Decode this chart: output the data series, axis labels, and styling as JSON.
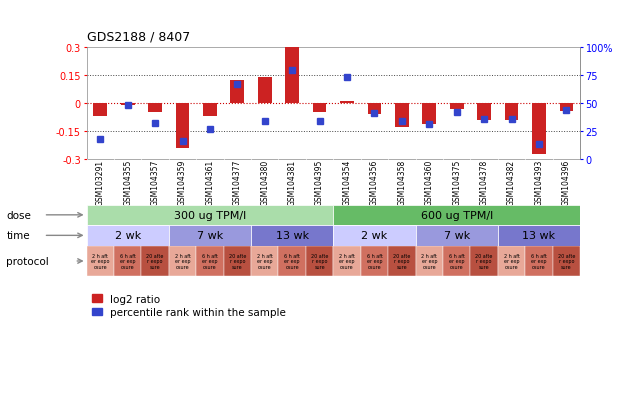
{
  "title": "GDS2188 / 8407",
  "samples": [
    "GSM103291",
    "GSM104355",
    "GSM104357",
    "GSM104359",
    "GSM104361",
    "GSM104377",
    "GSM104380",
    "GSM104381",
    "GSM104395",
    "GSM104354",
    "GSM104356",
    "GSM104358",
    "GSM104360",
    "GSM104375",
    "GSM104378",
    "GSM104382",
    "GSM104393",
    "GSM104396"
  ],
  "log2_ratio": [
    -0.07,
    -0.01,
    -0.05,
    -0.24,
    -0.07,
    0.12,
    0.14,
    0.3,
    -0.05,
    0.01,
    -0.06,
    -0.13,
    -0.11,
    -0.03,
    -0.09,
    -0.09,
    -0.27,
    -0.04
  ],
  "percentile": [
    18,
    48,
    32,
    16,
    27,
    67,
    34,
    79,
    34,
    73,
    41,
    34,
    31,
    42,
    36,
    36,
    14,
    44
  ],
  "dose_groups": [
    {
      "label": "300 ug TPM/l",
      "start": 0,
      "end": 9,
      "color": "#AADDAA"
    },
    {
      "label": "600 ug TPM/l",
      "start": 9,
      "end": 18,
      "color": "#66BB66"
    }
  ],
  "time_groups": [
    {
      "label": "2 wk",
      "start": 0,
      "end": 3,
      "color": "#CCCCFF"
    },
    {
      "label": "7 wk",
      "start": 3,
      "end": 6,
      "color": "#9999DD"
    },
    {
      "label": "13 wk",
      "start": 6,
      "end": 9,
      "color": "#7777CC"
    },
    {
      "label": "2 wk",
      "start": 9,
      "end": 12,
      "color": "#CCCCFF"
    },
    {
      "label": "7 wk",
      "start": 12,
      "end": 15,
      "color": "#9999DD"
    },
    {
      "label": "13 wk",
      "start": 15,
      "end": 18,
      "color": "#7777CC"
    }
  ],
  "protocol_labels": [
    "2 h aft\ner expo\nosure",
    "6 h aft\ner exp\nosure",
    "20 afte\nr expo\nsure",
    "2 h aft\ner exp\nosure",
    "6 h aft\ner exp\nosure",
    "20 afte\nr expo\nsure",
    "2 h aft\ner exp\nosure",
    "6 h aft\ner exp\nosure",
    "20 afte\nr expo\nsure",
    "2 h aft\ner exp\nosure",
    "6 h aft\ner exp\nosure",
    "20 afte\nr expo\nsure",
    "2 h aft\ner exp\nosure",
    "6 h aft\ner exp\nosure",
    "20 afte\nr expo\nsure",
    "2 h aft\ner exp\nosure",
    "6 h aft\ner exp\nosure",
    "20 afte\nr expo\nsure"
  ],
  "protocol_colors": [
    "#E8A898",
    "#D07060",
    "#B85040",
    "#E8A898",
    "#D07060",
    "#B85040",
    "#E8A898",
    "#D07060",
    "#B85040",
    "#E8A898",
    "#D07060",
    "#B85040",
    "#E8A898",
    "#D07060",
    "#B85040",
    "#E8A898",
    "#D07060",
    "#B85040"
  ],
  "ylim": [
    -0.3,
    0.3
  ],
  "yticks": [
    -0.3,
    -0.15,
    0.0,
    0.15,
    0.3
  ],
  "ytick_labels": [
    "-0.3",
    "-0.15",
    "0",
    "0.15",
    "0.3"
  ],
  "y2ticks": [
    0,
    25,
    50,
    75,
    100
  ],
  "y2tick_labels": [
    "0",
    "25",
    "50",
    "75",
    "100%"
  ],
  "bar_color_red": "#CC2222",
  "bar_color_blue": "#3344CC",
  "hline_color": "#CC0000",
  "dotted_color": "#444444",
  "bg_color": "#FFFFFF",
  "plot_bg_color": "#FFFFFF",
  "sample_label_bg": "#C8C8C8",
  "row_label_color": "#888888",
  "arrow_color": "#888888"
}
